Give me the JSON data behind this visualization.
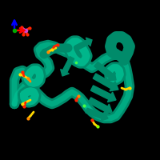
{
  "bg_color": "#000000",
  "protein_color": "#008B6A",
  "protein_color2": "#00C99A",
  "ligand_yellow": "#FFD700",
  "ligand_red": "#FF2200",
  "ligand_orange": "#FF8800",
  "ligand_green": "#88FF00",
  "ligand_pink": "#FF69B4",
  "ligand_magenta": "#CC44CC",
  "axis_red": "#FF0000",
  "axis_blue": "#0000FF",
  "axis_green": "#00AA00",
  "figsize": [
    2.0,
    2.0
  ],
  "dpi": 100
}
